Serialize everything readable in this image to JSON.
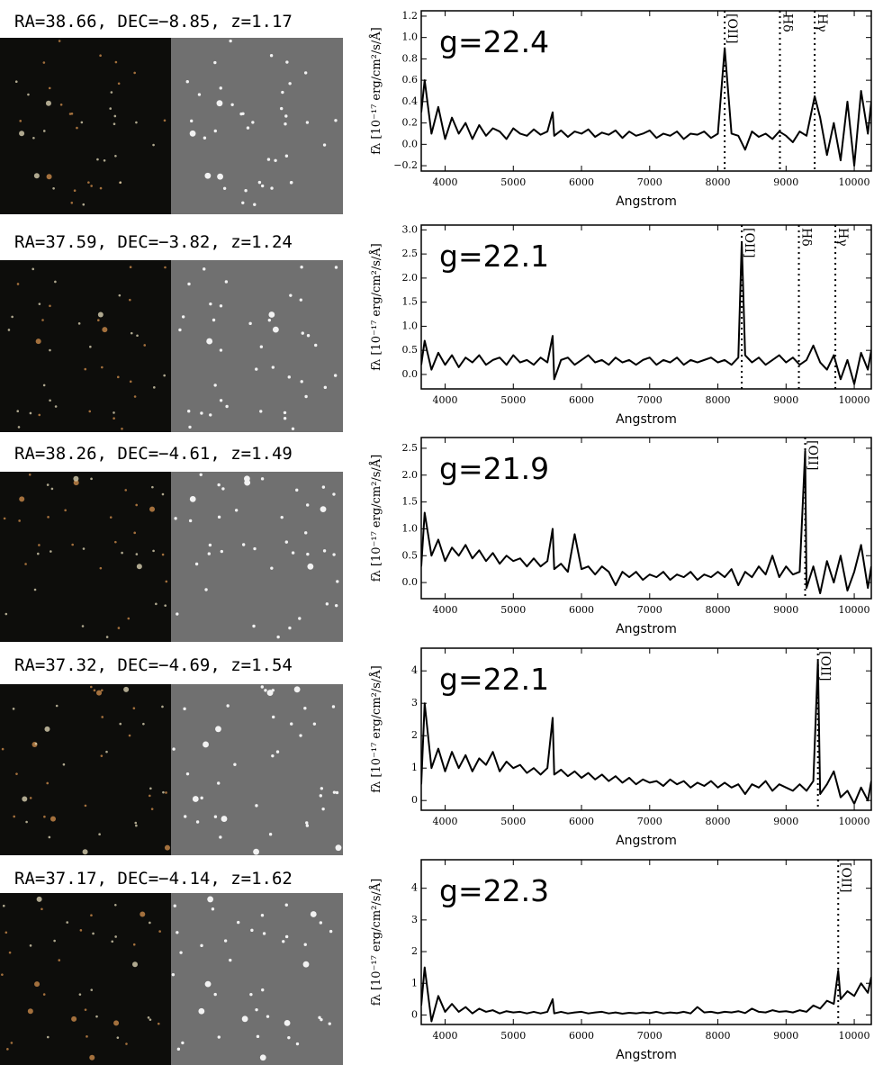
{
  "chart_data": [
    {
      "type": "line",
      "image_caption": "RA=38.66, DEC=−8.85, z=1.17",
      "annotation": "g=22.4",
      "xlabel": "Angstrom",
      "ylabel": "fλ [10⁻¹⁷ erg/cm²/s/Å]",
      "color": "#000000",
      "xlim": [
        3650,
        10250
      ],
      "xticks": [
        4000,
        5000,
        6000,
        7000,
        8000,
        9000,
        10000
      ],
      "ylim": [
        -0.25,
        1.25
      ],
      "yticks": [
        {
          "value": -0.2,
          "label": "−0.2"
        },
        {
          "value": 0,
          "label": "0.0"
        },
        0.2,
        0.4,
        0.6,
        0.8,
        {
          "value": 1,
          "label": "1.0"
        },
        1.2
      ],
      "lines": [
        {
          "label": "[OII]",
          "x": 8100
        },
        {
          "label": "Hδ",
          "x": 8910
        },
        {
          "label": "Hγ",
          "x": 9420
        }
      ],
      "x": [
        3650,
        3700,
        3800,
        3900,
        4000,
        4100,
        4200,
        4300,
        4400,
        4500,
        4600,
        4700,
        4800,
        4900,
        5000,
        5100,
        5200,
        5300,
        5400,
        5500,
        5577,
        5600,
        5700,
        5800,
        5900,
        6000,
        6100,
        6200,
        6300,
        6400,
        6500,
        6600,
        6700,
        6800,
        6900,
        7000,
        7100,
        7200,
        7300,
        7400,
        7500,
        7600,
        7700,
        7800,
        7900,
        8000,
        8100,
        8200,
        8300,
        8400,
        8500,
        8600,
        8700,
        8800,
        8900,
        9000,
        9100,
        9200,
        9300,
        9420,
        9500,
        9600,
        9700,
        9800,
        9900,
        10000,
        10100,
        10200,
        10250
      ],
      "values": [
        0.3,
        0.6,
        0.1,
        0.35,
        0.05,
        0.25,
        0.1,
        0.2,
        0.05,
        0.18,
        0.08,
        0.15,
        0.12,
        0.05,
        0.15,
        0.1,
        0.08,
        0.14,
        0.09,
        0.12,
        0.3,
        0.08,
        0.13,
        0.07,
        0.12,
        0.1,
        0.14,
        0.07,
        0.11,
        0.09,
        0.13,
        0.06,
        0.12,
        0.08,
        0.1,
        0.13,
        0.06,
        0.1,
        0.08,
        0.12,
        0.05,
        0.1,
        0.09,
        0.12,
        0.06,
        0.1,
        0.9,
        0.1,
        0.08,
        -0.05,
        0.12,
        0.07,
        0.1,
        0.05,
        0.12,
        0.08,
        0.02,
        0.12,
        0.08,
        0.45,
        0.25,
        -0.1,
        0.2,
        -0.15,
        0.4,
        -0.2,
        0.5,
        0.1,
        0.4
      ]
    },
    {
      "type": "line",
      "image_caption": "RA=37.59, DEC=−3.82, z=1.24",
      "annotation": "g=22.1",
      "xlabel": "Angstrom",
      "ylabel": "fλ [10⁻¹⁷ erg/cm²/s/Å]",
      "color": "#000000",
      "xlim": [
        3650,
        10250
      ],
      "xticks": [
        4000,
        5000,
        6000,
        7000,
        8000,
        9000,
        10000
      ],
      "ylim": [
        -0.3,
        3.1
      ],
      "yticks": [
        {
          "value": 0,
          "label": "0.0"
        },
        0.5,
        {
          "value": 1,
          "label": "1.0"
        },
        1.5,
        {
          "value": 2,
          "label": "2.0"
        },
        2.5,
        {
          "value": 3,
          "label": "3.0"
        }
      ],
      "lines": [
        {
          "label": "[OII]",
          "x": 8350
        },
        {
          "label": "Hδ",
          "x": 9188
        },
        {
          "label": "Hγ",
          "x": 9723
        }
      ],
      "x": [
        3650,
        3700,
        3800,
        3900,
        4000,
        4100,
        4200,
        4300,
        4400,
        4500,
        4600,
        4700,
        4800,
        4900,
        5000,
        5100,
        5200,
        5300,
        5400,
        5500,
        5577,
        5600,
        5700,
        5800,
        5900,
        6000,
        6100,
        6200,
        6300,
        6400,
        6500,
        6600,
        6700,
        6800,
        6900,
        7000,
        7100,
        7200,
        7300,
        7400,
        7500,
        7600,
        7700,
        7800,
        7900,
        8000,
        8100,
        8200,
        8300,
        8350,
        8400,
        8500,
        8600,
        8700,
        8800,
        8900,
        9000,
        9100,
        9200,
        9300,
        9400,
        9500,
        9600,
        9700,
        9800,
        9900,
        10000,
        10100,
        10200,
        10250
      ],
      "values": [
        0.2,
        0.7,
        0.1,
        0.45,
        0.2,
        0.4,
        0.15,
        0.35,
        0.25,
        0.4,
        0.2,
        0.3,
        0.35,
        0.2,
        0.4,
        0.25,
        0.3,
        0.2,
        0.35,
        0.25,
        0.8,
        -0.1,
        0.3,
        0.35,
        0.2,
        0.3,
        0.4,
        0.25,
        0.3,
        0.2,
        0.35,
        0.25,
        0.3,
        0.2,
        0.3,
        0.35,
        0.2,
        0.3,
        0.25,
        0.35,
        0.2,
        0.3,
        0.25,
        0.3,
        0.35,
        0.25,
        0.3,
        0.2,
        0.35,
        2.75,
        0.4,
        0.25,
        0.35,
        0.2,
        0.3,
        0.4,
        0.25,
        0.35,
        0.2,
        0.3,
        0.6,
        0.25,
        0.1,
        0.4,
        -0.1,
        0.3,
        -0.2,
        0.45,
        0.1,
        0.5
      ]
    },
    {
      "type": "line",
      "image_caption": "RA=38.26, DEC=−4.61, z=1.49",
      "annotation": "g=21.9",
      "xlabel": "Angstrom",
      "ylabel": "fλ [10⁻¹⁷ erg/cm²/s/Å]",
      "color": "#000000",
      "xlim": [
        3650,
        10250
      ],
      "xticks": [
        4000,
        5000,
        6000,
        7000,
        8000,
        9000,
        10000
      ],
      "ylim": [
        -0.3,
        2.7
      ],
      "yticks": [
        {
          "value": 0,
          "label": "0.0"
        },
        0.5,
        {
          "value": 1,
          "label": "1.0"
        },
        1.5,
        {
          "value": 2,
          "label": "2.0"
        },
        2.5
      ],
      "lines": [
        {
          "label": "[OII]",
          "x": 9280
        }
      ],
      "x": [
        3650,
        3700,
        3800,
        3900,
        4000,
        4100,
        4200,
        4300,
        4400,
        4500,
        4600,
        4700,
        4800,
        4900,
        5000,
        5100,
        5200,
        5300,
        5400,
        5500,
        5577,
        5600,
        5700,
        5800,
        5900,
        6000,
        6100,
        6200,
        6300,
        6400,
        6500,
        6600,
        6700,
        6800,
        6900,
        7000,
        7100,
        7200,
        7300,
        7400,
        7500,
        7600,
        7700,
        7800,
        7900,
        8000,
        8100,
        8200,
        8300,
        8400,
        8500,
        8600,
        8700,
        8800,
        8900,
        9000,
        9100,
        9200,
        9280,
        9300,
        9400,
        9500,
        9600,
        9700,
        9800,
        9900,
        10000,
        10100,
        10200,
        10250
      ],
      "values": [
        0.3,
        1.3,
        0.5,
        0.8,
        0.4,
        0.65,
        0.5,
        0.7,
        0.45,
        0.6,
        0.4,
        0.55,
        0.35,
        0.5,
        0.4,
        0.45,
        0.3,
        0.45,
        0.3,
        0.4,
        1.0,
        0.25,
        0.35,
        0.2,
        0.9,
        0.25,
        0.3,
        0.15,
        0.3,
        0.2,
        -0.05,
        0.2,
        0.1,
        0.2,
        0.05,
        0.15,
        0.1,
        0.2,
        0.05,
        0.15,
        0.1,
        0.2,
        0.05,
        0.15,
        0.1,
        0.2,
        0.1,
        0.25,
        -0.05,
        0.2,
        0.1,
        0.3,
        0.15,
        0.5,
        0.1,
        0.3,
        0.15,
        0.2,
        2.45,
        -0.1,
        0.3,
        -0.2,
        0.4,
        0.0,
        0.5,
        -0.15,
        0.2,
        0.7,
        -0.1,
        0.3
      ]
    },
    {
      "type": "line",
      "image_caption": "RA=37.32, DEC=−4.69, z=1.54",
      "annotation": "g=22.1",
      "xlabel": "Angstrom",
      "ylabel": "fλ [10⁻¹⁷ erg/cm²/s/Å]",
      "color": "#000000",
      "xlim": [
        3650,
        10250
      ],
      "xticks": [
        4000,
        5000,
        6000,
        7000,
        8000,
        9000,
        10000
      ],
      "ylim": [
        -0.3,
        4.7
      ],
      "yticks": [
        0,
        1,
        2,
        3,
        4
      ],
      "lines": [
        {
          "label": "[OII]",
          "x": 9467
        }
      ],
      "x": [
        3650,
        3700,
        3800,
        3900,
        4000,
        4100,
        4200,
        4300,
        4400,
        4500,
        4600,
        4700,
        4800,
        4900,
        5000,
        5100,
        5200,
        5300,
        5400,
        5500,
        5577,
        5600,
        5700,
        5800,
        5900,
        6000,
        6100,
        6200,
        6300,
        6400,
        6500,
        6600,
        6700,
        6800,
        6900,
        7000,
        7100,
        7200,
        7300,
        7400,
        7500,
        7600,
        7700,
        7800,
        7900,
        8000,
        8100,
        8200,
        8300,
        8400,
        8500,
        8600,
        8700,
        8800,
        8900,
        9000,
        9100,
        9200,
        9300,
        9400,
        9467,
        9500,
        9600,
        9700,
        9800,
        9900,
        10000,
        10100,
        10200,
        10250
      ],
      "values": [
        0.5,
        3.0,
        1.0,
        1.6,
        0.9,
        1.5,
        1.0,
        1.4,
        0.9,
        1.3,
        1.1,
        1.5,
        0.9,
        1.2,
        1.0,
        1.1,
        0.85,
        1.0,
        0.8,
        1.0,
        2.55,
        0.8,
        0.95,
        0.75,
        0.9,
        0.7,
        0.85,
        0.65,
        0.8,
        0.6,
        0.75,
        0.55,
        0.7,
        0.5,
        0.65,
        0.55,
        0.6,
        0.45,
        0.65,
        0.5,
        0.6,
        0.4,
        0.55,
        0.45,
        0.6,
        0.4,
        0.55,
        0.4,
        0.5,
        0.2,
        0.5,
        0.4,
        0.6,
        0.3,
        0.5,
        0.4,
        0.3,
        0.5,
        0.3,
        0.6,
        4.3,
        0.2,
        0.5,
        0.9,
        0.1,
        0.3,
        -0.1,
        0.4,
        0.0,
        0.6
      ]
    },
    {
      "type": "line",
      "image_caption": "RA=37.17, DEC=−4.14, z=1.62",
      "annotation": "g=22.3",
      "xlabel": "Angstrom",
      "ylabel": "fλ [10⁻¹⁷ erg/cm²/s/Å]",
      "color": "#000000",
      "xlim": [
        3650,
        10250
      ],
      "xticks": [
        4000,
        5000,
        6000,
        7000,
        8000,
        9000,
        10000
      ],
      "ylim": [
        -0.3,
        4.9
      ],
      "yticks": [
        0,
        1,
        2,
        3,
        4
      ],
      "lines": [
        {
          "label": "[OII]",
          "x": 9765
        }
      ],
      "x": [
        3650,
        3700,
        3800,
        3900,
        4000,
        4100,
        4200,
        4300,
        4400,
        4500,
        4600,
        4700,
        4800,
        4900,
        5000,
        5100,
        5200,
        5300,
        5400,
        5500,
        5577,
        5600,
        5700,
        5800,
        5900,
        6000,
        6100,
        6200,
        6300,
        6400,
        6500,
        6600,
        6700,
        6800,
        6900,
        7000,
        7100,
        7200,
        7300,
        7400,
        7500,
        7600,
        7700,
        7800,
        7900,
        8000,
        8100,
        8200,
        8300,
        8400,
        8500,
        8600,
        8700,
        8800,
        8900,
        9000,
        9100,
        9200,
        9300,
        9400,
        9500,
        9600,
        9700,
        9765,
        9800,
        9900,
        10000,
        10100,
        10200,
        10250
      ],
      "values": [
        0.3,
        1.5,
        -0.2,
        0.6,
        0.1,
        0.35,
        0.1,
        0.25,
        0.05,
        0.2,
        0.1,
        0.15,
        0.05,
        0.12,
        0.08,
        0.1,
        0.05,
        0.1,
        0.05,
        0.1,
        0.5,
        0.05,
        0.1,
        0.05,
        0.08,
        0.1,
        0.05,
        0.08,
        0.1,
        0.05,
        0.08,
        0.04,
        0.07,
        0.05,
        0.08,
        0.06,
        0.1,
        0.05,
        0.08,
        0.06,
        0.1,
        0.05,
        0.25,
        0.08,
        0.1,
        0.06,
        0.1,
        0.08,
        0.12,
        0.06,
        0.2,
        0.1,
        0.08,
        0.15,
        0.1,
        0.12,
        0.08,
        0.15,
        0.1,
        0.3,
        0.2,
        0.45,
        0.35,
        1.4,
        0.5,
        0.75,
        0.6,
        1.0,
        0.7,
        1.2
      ]
    }
  ]
}
